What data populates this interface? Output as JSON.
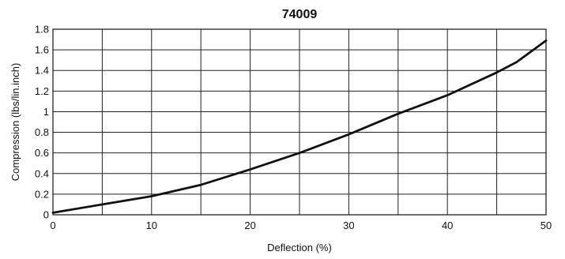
{
  "chart_data": {
    "type": "line",
    "title": "74009",
    "xlabel": "Deflection (%)",
    "ylabel": "Compression (lbs/lin.inch)",
    "xlim": [
      0,
      50
    ],
    "ylim": [
      0,
      1.8
    ],
    "xticks": [
      0,
      10,
      20,
      30,
      40,
      50
    ],
    "xgrid": [
      0,
      5,
      10,
      15,
      20,
      25,
      30,
      35,
      40,
      45,
      50
    ],
    "yticks": [
      0,
      0.2,
      0.4,
      0.6,
      0.8,
      1,
      1.2,
      1.4,
      1.6,
      1.8
    ],
    "grid": true,
    "legend": "none",
    "series": [
      {
        "x": [
          0,
          5,
          10,
          15,
          20,
          25,
          30,
          35,
          40,
          45,
          47,
          50
        ],
        "y": [
          0.02,
          0.1,
          0.18,
          0.29,
          0.44,
          0.6,
          0.78,
          0.98,
          1.16,
          1.38,
          1.48,
          1.69
        ]
      }
    ]
  }
}
